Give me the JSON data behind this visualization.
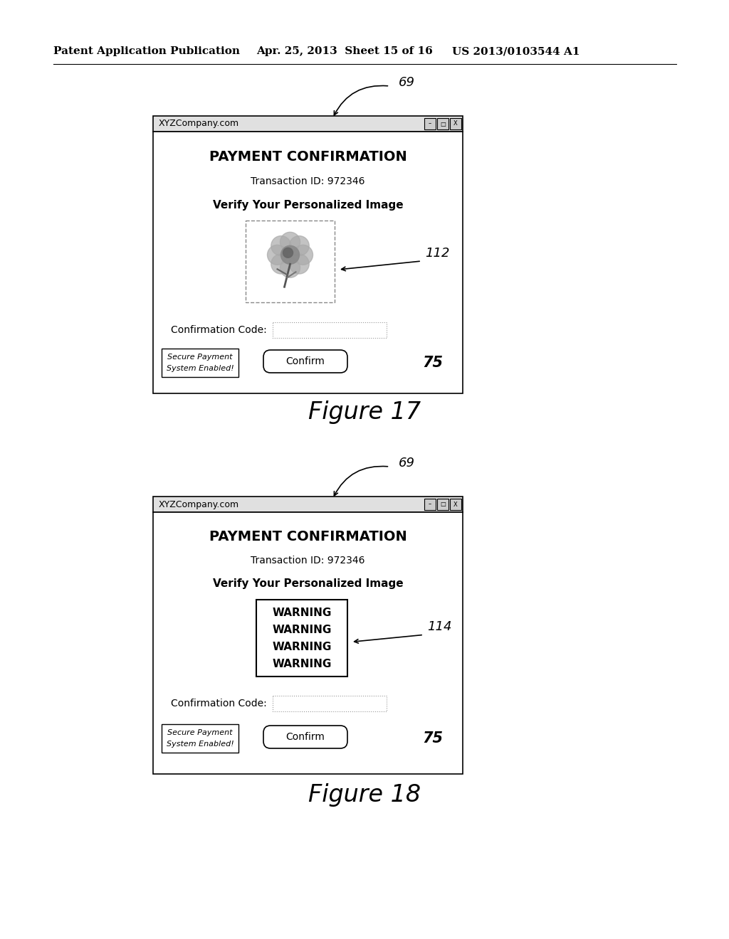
{
  "bg_color": "#ffffff",
  "header_text": "Patent Application Publication",
  "header_date": "Apr. 25, 2013  Sheet 15 of 16",
  "header_patent": "US 2013/0103544 A1",
  "fig1": {
    "browser_url": "XYZCompany.com",
    "title": "PAYMENT CONFIRMATION",
    "transaction": "Transaction ID: 972346",
    "verify_label": "Verify Your Personalized Image",
    "confirm_code_label": "Confirmation Code:",
    "confirm_button": "Confirm",
    "secure_line1": "Secure Payment",
    "secure_line2": "System Enabled!",
    "label_69": "69",
    "label_112": "112",
    "label_75": "75",
    "figure_caption": "Figure 17"
  },
  "fig2": {
    "browser_url": "XYZCompany.com",
    "title": "PAYMENT CONFIRMATION",
    "transaction": "Transaction ID: 972346",
    "verify_label": "Verify Your Personalized Image",
    "warning_lines": [
      "WARNING",
      "WARNING",
      "WARNING",
      "WARNING"
    ],
    "confirm_code_label": "Confirmation Code:",
    "confirm_button": "Confirm",
    "secure_line1": "Secure Payment",
    "secure_line2": "System Enabled!",
    "label_69": "69",
    "label_114": "114",
    "label_75": "75",
    "figure_caption": "Figure 18"
  }
}
